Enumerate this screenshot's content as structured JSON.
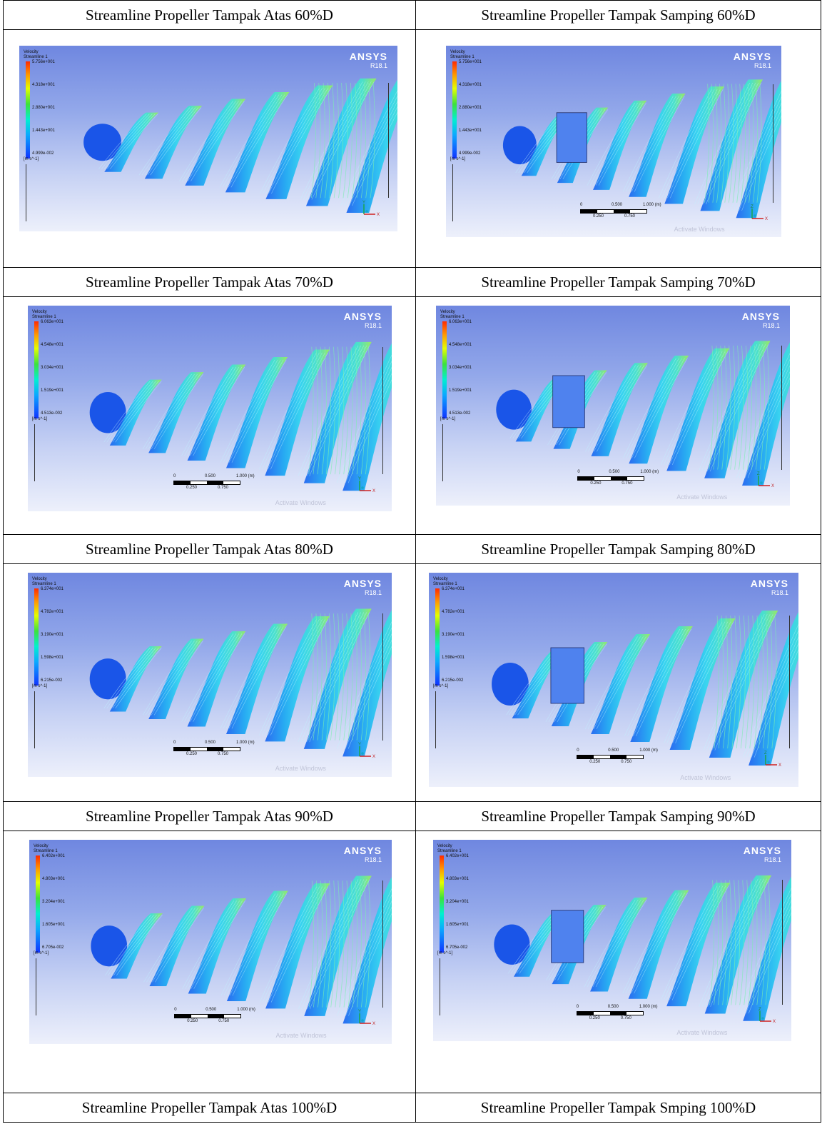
{
  "rows": [
    {
      "left": {
        "caption": "Streamline Propeller Tampak Atas 60%D",
        "legend": {
          "title": "Velocity",
          "subtitle": "Streamline 1",
          "ticks": [
            "5.756e+001",
            "4.318e+001",
            "2.880e+001",
            "1.443e+001",
            "4.999e-002"
          ],
          "unit": "[m s^-1]"
        },
        "brand": {
          "name": "ANSYS",
          "version": "R18.1"
        },
        "triad": {
          "up": "Y",
          "right": "X"
        }
      },
      "right": {
        "caption": "Streamline Propeller Tampak Samping 60%D",
        "legend": {
          "title": "Velocity",
          "subtitle": "Streamline 1",
          "ticks": [
            "5.756e+001",
            "4.318e+001",
            "2.880e+001",
            "1.443e+001",
            "4.999e-002"
          ],
          "unit": "[m s^-1]"
        },
        "brand": {
          "name": "ANSYS",
          "version": "R18.1"
        },
        "scale": {
          "top": [
            "0",
            "0.500",
            "1.000 (m)"
          ],
          "bottom": [
            "0.250",
            "0.750"
          ]
        },
        "triad": {
          "up": "Z",
          "right": "X"
        },
        "watermark": "Activate Windows"
      }
    },
    {
      "left": {
        "caption": "Streamline Propeller Tampak Atas 70%D",
        "legend": {
          "title": "Velocity",
          "subtitle": "Streamline 1",
          "ticks": [
            "6.063e+001",
            "4.548e+001",
            "3.034e+001",
            "1.519e+001",
            "4.513e-002"
          ],
          "unit": "[m s^-1]"
        },
        "brand": {
          "name": "ANSYS",
          "version": "R18.1"
        },
        "scale": {
          "top": [
            "0",
            "0.500",
            "1.000 (m)"
          ],
          "bottom": [
            "0.250",
            "0.750"
          ]
        },
        "triad": {
          "up": "Y",
          "right": "X"
        },
        "watermark": "Activate Windows"
      },
      "right": {
        "caption": "Streamline Propeller Tampak Samping 70%D",
        "legend": {
          "title": "Velocity",
          "subtitle": "Streamline 1",
          "ticks": [
            "6.063e+001",
            "4.548e+001",
            "3.034e+001",
            "1.519e+001",
            "4.513e-002"
          ],
          "unit": "[m s^-1]"
        },
        "brand": {
          "name": "ANSYS",
          "version": "R18.1"
        },
        "scale": {
          "top": [
            "0",
            "0.500",
            "1.000 (m)"
          ],
          "bottom": [
            "0.250",
            "0.750"
          ]
        },
        "triad": {
          "up": "Z",
          "right": "X"
        },
        "watermark": "Activate Windows"
      }
    },
    {
      "left": {
        "caption": "Streamline Propeller Tampak Atas 80%D",
        "legend": {
          "title": "Velocity",
          "subtitle": "Streamline 1",
          "ticks": [
            "6.374e+001",
            "4.782e+001",
            "3.190e+001",
            "1.598e+001",
            "6.215e-002"
          ],
          "unit": "[m s^-1]"
        },
        "brand": {
          "name": "ANSYS",
          "version": "R18.1"
        },
        "scale": {
          "top": [
            "0",
            "0.500",
            "1.000 (m)"
          ],
          "bottom": [
            "0.250",
            "0.750"
          ]
        },
        "triad": {
          "up": "Y",
          "right": "X"
        },
        "watermark": "Activate Windows"
      },
      "right": {
        "caption": "Streamline Propeller Tampak Samping 80%D",
        "legend": {
          "title": "Velocity",
          "subtitle": "Streamline 1",
          "ticks": [
            "6.374e+001",
            "4.782e+001",
            "3.190e+001",
            "1.598e+001",
            "6.215e-002"
          ],
          "unit": "[m s^-1]"
        },
        "brand": {
          "name": "ANSYS",
          "version": "R18.1"
        },
        "scale": {
          "top": [
            "0",
            "0.500",
            "1.000 (m)"
          ],
          "bottom": [
            "0.250",
            "0.750"
          ]
        },
        "triad": {
          "up": "Z",
          "right": "X"
        },
        "watermark": "Activate Windows"
      }
    },
    {
      "left": {
        "caption": "Streamline Propeller Tampak Atas 90%D",
        "legend": {
          "title": "Velocity",
          "subtitle": "Streamline 1",
          "ticks": [
            "6.402e+001",
            "4.803e+001",
            "3.204e+001",
            "1.605e+001",
            "6.705e-002"
          ],
          "unit": "[m s^-1]"
        },
        "brand": {
          "name": "ANSYS",
          "version": "R18.1"
        },
        "scale": {
          "top": [
            "0",
            "0.500",
            "1.000 (m)"
          ],
          "bottom": [
            "0.250",
            "0.750"
          ]
        },
        "triad": {
          "up": "Y",
          "right": "X"
        },
        "watermark": "Activate Windows"
      },
      "right": {
        "caption": "Streamline Propeller Tampak Samping 90%D",
        "legend": {
          "title": "Velocity",
          "subtitle": "Streamline 1",
          "ticks": [
            "6.402e+001",
            "4.803e+001",
            "3.204e+001",
            "1.605e+001",
            "6.705e-002"
          ],
          "unit": "[m s^-1]"
        },
        "brand": {
          "name": "ANSYS",
          "version": "R18.1"
        },
        "scale": {
          "top": [
            "0",
            "0.500",
            "1.000 (m)"
          ],
          "bottom": [
            "0.250",
            "0.750"
          ]
        },
        "triad": {
          "up": "Z",
          "right": "X"
        },
        "watermark": "Activate Windows"
      }
    }
  ],
  "footer": {
    "left": "Streamline Propeller Tampak Atas 100%D",
    "right": "Streamline Propeller Tampak Smping 100%D"
  }
}
